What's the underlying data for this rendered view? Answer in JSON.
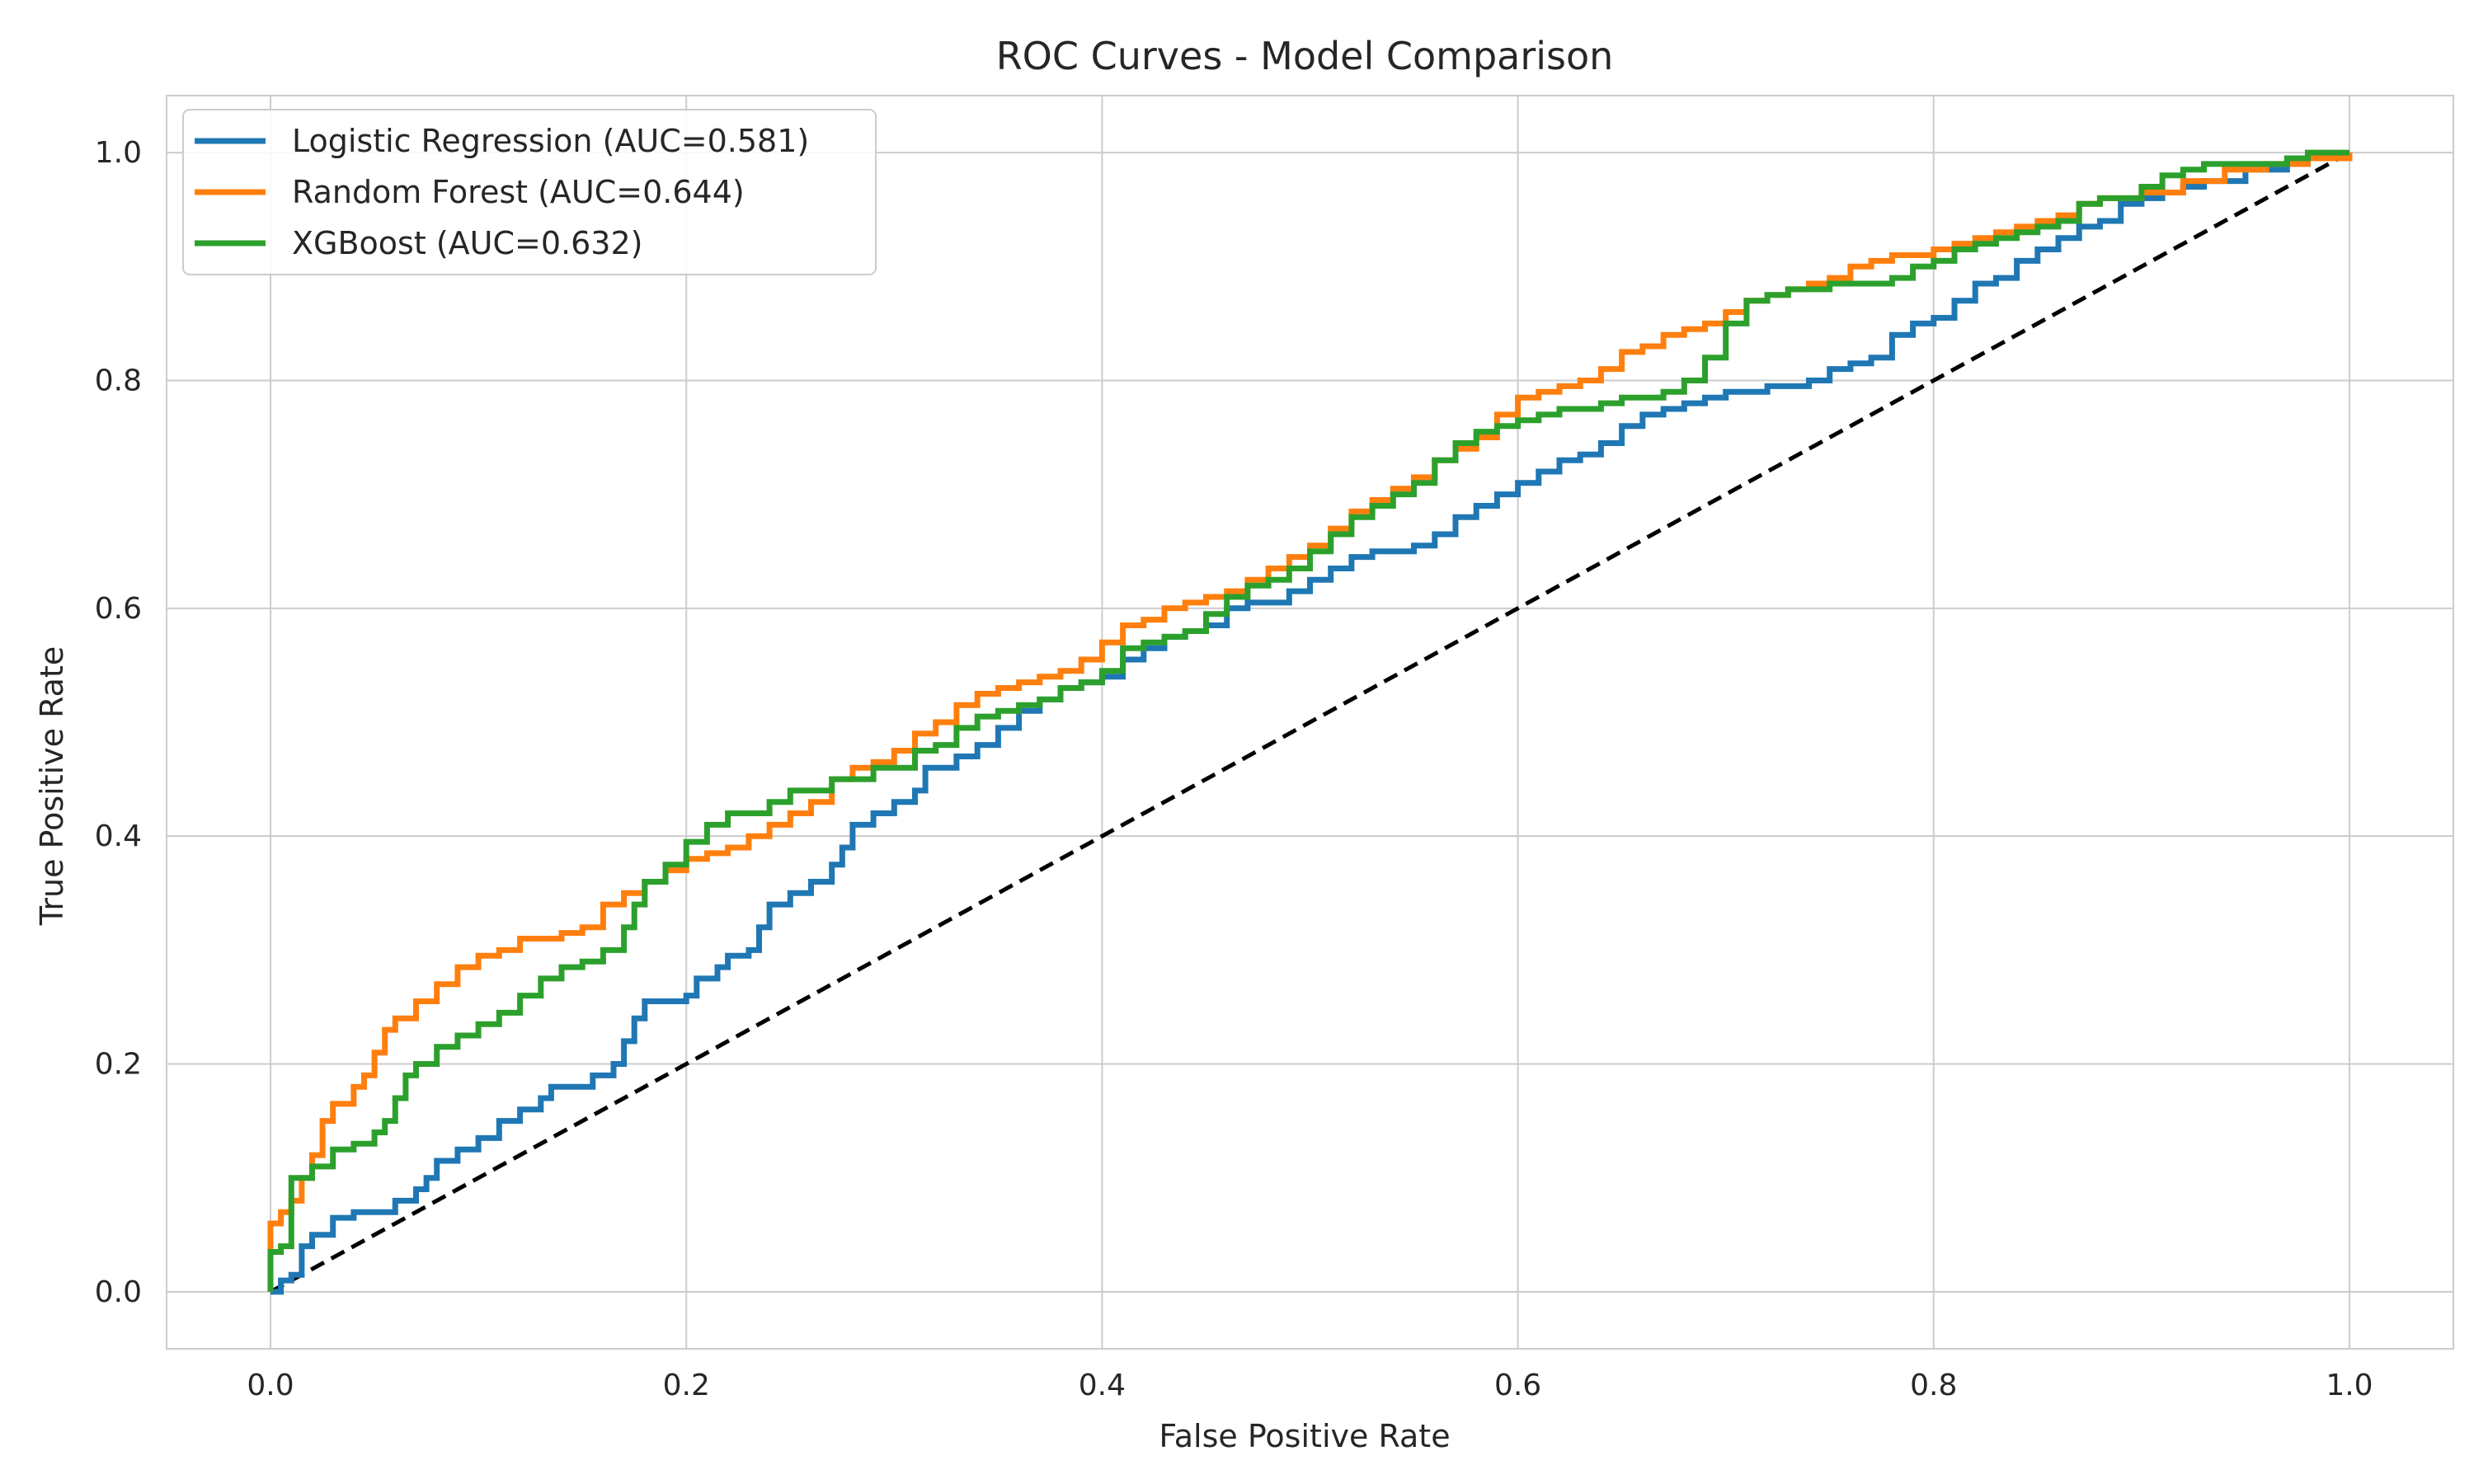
{
  "chart_data": {
    "type": "line",
    "title": "ROC Curves - Model Comparison",
    "xlabel": "False Positive Rate",
    "ylabel": "True Positive Rate",
    "xlim": [
      -0.05,
      1.05
    ],
    "ylim": [
      -0.05,
      1.05
    ],
    "x_ticks": [
      0.0,
      0.2,
      0.4,
      0.6,
      0.8,
      1.0
    ],
    "x_tick_labels": [
      "0.0",
      "0.2",
      "0.4",
      "0.6",
      "0.8",
      "1.0"
    ],
    "y_ticks": [
      0.0,
      0.2,
      0.4,
      0.6,
      0.8,
      1.0
    ],
    "y_tick_labels": [
      "0.0",
      "0.2",
      "0.4",
      "0.6",
      "0.8",
      "1.0"
    ],
    "grid": true,
    "legend_position": "top-left",
    "series": [
      {
        "name": "Logistic Regression (AUC=0.581)",
        "color": "#1f77b4",
        "points": [
          [
            0.0,
            0.0
          ],
          [
            0.005,
            0.01
          ],
          [
            0.01,
            0.015
          ],
          [
            0.015,
            0.02
          ],
          [
            0.015,
            0.04
          ],
          [
            0.02,
            0.05
          ],
          [
            0.03,
            0.065
          ],
          [
            0.04,
            0.07
          ],
          [
            0.05,
            0.07
          ],
          [
            0.06,
            0.08
          ],
          [
            0.07,
            0.09
          ],
          [
            0.075,
            0.1
          ],
          [
            0.08,
            0.115
          ],
          [
            0.09,
            0.125
          ],
          [
            0.1,
            0.135
          ],
          [
            0.11,
            0.15
          ],
          [
            0.12,
            0.16
          ],
          [
            0.13,
            0.17
          ],
          [
            0.135,
            0.18
          ],
          [
            0.15,
            0.18
          ],
          [
            0.155,
            0.19
          ],
          [
            0.165,
            0.2
          ],
          [
            0.17,
            0.22
          ],
          [
            0.175,
            0.24
          ],
          [
            0.18,
            0.255
          ],
          [
            0.2,
            0.26
          ],
          [
            0.205,
            0.275
          ],
          [
            0.215,
            0.285
          ],
          [
            0.22,
            0.295
          ],
          [
            0.23,
            0.3
          ],
          [
            0.235,
            0.32
          ],
          [
            0.24,
            0.34
          ],
          [
            0.25,
            0.35
          ],
          [
            0.26,
            0.36
          ],
          [
            0.27,
            0.375
          ],
          [
            0.275,
            0.39
          ],
          [
            0.28,
            0.41
          ],
          [
            0.29,
            0.42
          ],
          [
            0.3,
            0.43
          ],
          [
            0.31,
            0.44
          ],
          [
            0.315,
            0.46
          ],
          [
            0.33,
            0.47
          ],
          [
            0.34,
            0.48
          ],
          [
            0.35,
            0.495
          ],
          [
            0.36,
            0.51
          ],
          [
            0.37,
            0.52
          ],
          [
            0.38,
            0.53
          ],
          [
            0.39,
            0.535
          ],
          [
            0.4,
            0.54
          ],
          [
            0.41,
            0.555
          ],
          [
            0.42,
            0.565
          ],
          [
            0.43,
            0.575
          ],
          [
            0.44,
            0.58
          ],
          [
            0.45,
            0.585
          ],
          [
            0.46,
            0.6
          ],
          [
            0.47,
            0.605
          ],
          [
            0.48,
            0.605
          ],
          [
            0.49,
            0.615
          ],
          [
            0.5,
            0.625
          ],
          [
            0.51,
            0.635
          ],
          [
            0.52,
            0.645
          ],
          [
            0.53,
            0.65
          ],
          [
            0.55,
            0.655
          ],
          [
            0.56,
            0.665
          ],
          [
            0.57,
            0.68
          ],
          [
            0.58,
            0.69
          ],
          [
            0.59,
            0.7
          ],
          [
            0.6,
            0.71
          ],
          [
            0.61,
            0.72
          ],
          [
            0.62,
            0.73
          ],
          [
            0.63,
            0.735
          ],
          [
            0.64,
            0.745
          ],
          [
            0.65,
            0.76
          ],
          [
            0.66,
            0.77
          ],
          [
            0.67,
            0.775
          ],
          [
            0.68,
            0.78
          ],
          [
            0.69,
            0.785
          ],
          [
            0.7,
            0.79
          ],
          [
            0.72,
            0.795
          ],
          [
            0.74,
            0.8
          ],
          [
            0.75,
            0.81
          ],
          [
            0.76,
            0.815
          ],
          [
            0.77,
            0.82
          ],
          [
            0.78,
            0.84
          ],
          [
            0.79,
            0.85
          ],
          [
            0.8,
            0.855
          ],
          [
            0.81,
            0.87
          ],
          [
            0.82,
            0.885
          ],
          [
            0.83,
            0.89
          ],
          [
            0.84,
            0.905
          ],
          [
            0.85,
            0.915
          ],
          [
            0.86,
            0.925
          ],
          [
            0.87,
            0.935
          ],
          [
            0.88,
            0.94
          ],
          [
            0.89,
            0.955
          ],
          [
            0.9,
            0.96
          ],
          [
            0.91,
            0.965
          ],
          [
            0.92,
            0.97
          ],
          [
            0.93,
            0.975
          ],
          [
            0.95,
            0.985
          ],
          [
            0.97,
            0.99
          ],
          [
            0.98,
            0.995
          ],
          [
            1.0,
            1.0
          ]
        ]
      },
      {
        "name": "Random Forest (AUC=0.644)",
        "color": "#ff7f0e",
        "points": [
          [
            0.0,
            0.0
          ],
          [
            0.0,
            0.06
          ],
          [
            0.005,
            0.07
          ],
          [
            0.01,
            0.08
          ],
          [
            0.015,
            0.1
          ],
          [
            0.02,
            0.12
          ],
          [
            0.025,
            0.15
          ],
          [
            0.03,
            0.165
          ],
          [
            0.04,
            0.18
          ],
          [
            0.045,
            0.19
          ],
          [
            0.05,
            0.21
          ],
          [
            0.055,
            0.23
          ],
          [
            0.06,
            0.24
          ],
          [
            0.07,
            0.255
          ],
          [
            0.08,
            0.27
          ],
          [
            0.09,
            0.285
          ],
          [
            0.1,
            0.295
          ],
          [
            0.11,
            0.3
          ],
          [
            0.12,
            0.31
          ],
          [
            0.13,
            0.31
          ],
          [
            0.14,
            0.315
          ],
          [
            0.15,
            0.32
          ],
          [
            0.16,
            0.34
          ],
          [
            0.17,
            0.35
          ],
          [
            0.18,
            0.36
          ],
          [
            0.19,
            0.37
          ],
          [
            0.2,
            0.38
          ],
          [
            0.21,
            0.385
          ],
          [
            0.22,
            0.39
          ],
          [
            0.23,
            0.4
          ],
          [
            0.24,
            0.41
          ],
          [
            0.25,
            0.42
          ],
          [
            0.26,
            0.43
          ],
          [
            0.27,
            0.45
          ],
          [
            0.28,
            0.46
          ],
          [
            0.29,
            0.465
          ],
          [
            0.3,
            0.475
          ],
          [
            0.31,
            0.49
          ],
          [
            0.32,
            0.5
          ],
          [
            0.33,
            0.515
          ],
          [
            0.34,
            0.525
          ],
          [
            0.35,
            0.53
          ],
          [
            0.36,
            0.535
          ],
          [
            0.37,
            0.54
          ],
          [
            0.38,
            0.545
          ],
          [
            0.39,
            0.555
          ],
          [
            0.4,
            0.57
          ],
          [
            0.41,
            0.585
          ],
          [
            0.42,
            0.59
          ],
          [
            0.43,
            0.6
          ],
          [
            0.44,
            0.605
          ],
          [
            0.45,
            0.61
          ],
          [
            0.46,
            0.615
          ],
          [
            0.47,
            0.625
          ],
          [
            0.48,
            0.635
          ],
          [
            0.49,
            0.645
          ],
          [
            0.5,
            0.655
          ],
          [
            0.51,
            0.67
          ],
          [
            0.52,
            0.685
          ],
          [
            0.53,
            0.695
          ],
          [
            0.54,
            0.705
          ],
          [
            0.55,
            0.715
          ],
          [
            0.56,
            0.73
          ],
          [
            0.57,
            0.74
          ],
          [
            0.58,
            0.75
          ],
          [
            0.59,
            0.77
          ],
          [
            0.6,
            0.785
          ],
          [
            0.61,
            0.79
          ],
          [
            0.62,
            0.795
          ],
          [
            0.63,
            0.8
          ],
          [
            0.64,
            0.81
          ],
          [
            0.65,
            0.825
          ],
          [
            0.66,
            0.83
          ],
          [
            0.67,
            0.84
          ],
          [
            0.68,
            0.845
          ],
          [
            0.69,
            0.85
          ],
          [
            0.7,
            0.86
          ],
          [
            0.71,
            0.87
          ],
          [
            0.72,
            0.875
          ],
          [
            0.73,
            0.88
          ],
          [
            0.74,
            0.885
          ],
          [
            0.75,
            0.89
          ],
          [
            0.76,
            0.9
          ],
          [
            0.77,
            0.905
          ],
          [
            0.78,
            0.91
          ],
          [
            0.8,
            0.915
          ],
          [
            0.81,
            0.92
          ],
          [
            0.82,
            0.925
          ],
          [
            0.83,
            0.93
          ],
          [
            0.84,
            0.935
          ],
          [
            0.85,
            0.94
          ],
          [
            0.86,
            0.945
          ],
          [
            0.87,
            0.955
          ],
          [
            0.88,
            0.96
          ],
          [
            0.9,
            0.965
          ],
          [
            0.92,
            0.975
          ],
          [
            0.94,
            0.985
          ],
          [
            0.96,
            0.99
          ],
          [
            0.98,
            0.995
          ],
          [
            1.0,
            1.0
          ]
        ]
      },
      {
        "name": "XGBoost (AUC=0.632)",
        "color": "#2ca02c",
        "points": [
          [
            0.0,
            0.0
          ],
          [
            0.0,
            0.035
          ],
          [
            0.005,
            0.04
          ],
          [
            0.01,
            0.06
          ],
          [
            0.01,
            0.1
          ],
          [
            0.02,
            0.11
          ],
          [
            0.03,
            0.125
          ],
          [
            0.04,
            0.13
          ],
          [
            0.05,
            0.14
          ],
          [
            0.055,
            0.15
          ],
          [
            0.06,
            0.17
          ],
          [
            0.065,
            0.19
          ],
          [
            0.07,
            0.2
          ],
          [
            0.08,
            0.215
          ],
          [
            0.09,
            0.225
          ],
          [
            0.1,
            0.235
          ],
          [
            0.11,
            0.245
          ],
          [
            0.12,
            0.26
          ],
          [
            0.13,
            0.275
          ],
          [
            0.14,
            0.285
          ],
          [
            0.15,
            0.29
          ],
          [
            0.16,
            0.3
          ],
          [
            0.17,
            0.32
          ],
          [
            0.175,
            0.34
          ],
          [
            0.18,
            0.36
          ],
          [
            0.19,
            0.375
          ],
          [
            0.2,
            0.395
          ],
          [
            0.21,
            0.41
          ],
          [
            0.22,
            0.42
          ],
          [
            0.24,
            0.43
          ],
          [
            0.25,
            0.44
          ],
          [
            0.26,
            0.44
          ],
          [
            0.27,
            0.45
          ],
          [
            0.29,
            0.46
          ],
          [
            0.31,
            0.475
          ],
          [
            0.32,
            0.48
          ],
          [
            0.33,
            0.495
          ],
          [
            0.34,
            0.505
          ],
          [
            0.35,
            0.51
          ],
          [
            0.36,
            0.515
          ],
          [
            0.37,
            0.52
          ],
          [
            0.38,
            0.53
          ],
          [
            0.39,
            0.535
          ],
          [
            0.4,
            0.545
          ],
          [
            0.41,
            0.565
          ],
          [
            0.42,
            0.57
          ],
          [
            0.43,
            0.575
          ],
          [
            0.44,
            0.58
          ],
          [
            0.45,
            0.595
          ],
          [
            0.46,
            0.61
          ],
          [
            0.47,
            0.62
          ],
          [
            0.48,
            0.625
          ],
          [
            0.49,
            0.635
          ],
          [
            0.5,
            0.65
          ],
          [
            0.51,
            0.665
          ],
          [
            0.52,
            0.68
          ],
          [
            0.53,
            0.69
          ],
          [
            0.54,
            0.7
          ],
          [
            0.55,
            0.71
          ],
          [
            0.56,
            0.73
          ],
          [
            0.57,
            0.745
          ],
          [
            0.58,
            0.755
          ],
          [
            0.59,
            0.76
          ],
          [
            0.6,
            0.765
          ],
          [
            0.61,
            0.77
          ],
          [
            0.62,
            0.775
          ],
          [
            0.63,
            0.775
          ],
          [
            0.64,
            0.78
          ],
          [
            0.65,
            0.785
          ],
          [
            0.66,
            0.785
          ],
          [
            0.67,
            0.79
          ],
          [
            0.68,
            0.8
          ],
          [
            0.69,
            0.82
          ],
          [
            0.7,
            0.85
          ],
          [
            0.71,
            0.87
          ],
          [
            0.72,
            0.875
          ],
          [
            0.73,
            0.88
          ],
          [
            0.74,
            0.88
          ],
          [
            0.75,
            0.885
          ],
          [
            0.77,
            0.885
          ],
          [
            0.78,
            0.89
          ],
          [
            0.79,
            0.9
          ],
          [
            0.8,
            0.905
          ],
          [
            0.81,
            0.915
          ],
          [
            0.82,
            0.92
          ],
          [
            0.83,
            0.925
          ],
          [
            0.84,
            0.93
          ],
          [
            0.85,
            0.935
          ],
          [
            0.86,
            0.94
          ],
          [
            0.87,
            0.955
          ],
          [
            0.88,
            0.96
          ],
          [
            0.9,
            0.97
          ],
          [
            0.91,
            0.98
          ],
          [
            0.92,
            0.985
          ],
          [
            0.93,
            0.99
          ],
          [
            0.95,
            0.99
          ],
          [
            0.97,
            0.995
          ],
          [
            0.98,
            1.0
          ],
          [
            1.0,
            1.0
          ]
        ]
      }
    ],
    "reference_line": {
      "color": "#000000",
      "style": "dashed",
      "points": [
        [
          0.0,
          0.0
        ],
        [
          1.0,
          1.0
        ]
      ]
    }
  }
}
